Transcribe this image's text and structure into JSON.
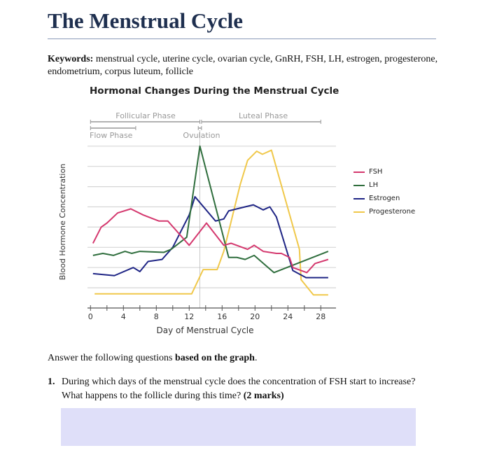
{
  "document": {
    "title": "The Menstrual Cycle",
    "keywords_label": "Keywords:",
    "keywords_text": " menstrual cycle, uterine cycle, ovarian cycle, GnRH, FSH, LH, estrogen, progesterone, endometrium, corpus luteum, follicle",
    "intro_prefix": "Answer the following questions ",
    "intro_bold": "based on the graph",
    "intro_suffix": ".",
    "question_number": "1.",
    "question_text": "During which days of the menstrual cycle does the concentration of FSH start to increase? What happens to the follicle during this time? ",
    "question_marks": "(2 marks)",
    "answer_box_color": "#dfdff9"
  },
  "chart_data": {
    "type": "line",
    "title": "Hormonal Changes During the Menstrual Cycle",
    "xlabel": "Day of Menstrual Cycle",
    "ylabel": "Blood Hormone Concentration",
    "xlim": [
      0,
      29
    ],
    "ylim": [
      0,
      8
    ],
    "x_ticks": [
      "0",
      "4",
      "8",
      "12",
      "16",
      "20",
      "24",
      "28"
    ],
    "grid": "horizontal",
    "legend_position": "right",
    "phases": {
      "follicular": {
        "label": "Follicular Phase",
        "range": [
          0,
          13.3
        ]
      },
      "luteal": {
        "label": "Luteal Phase",
        "range": [
          13.5,
          28
        ]
      },
      "flow": {
        "label": "Flow Phase",
        "range": [
          0,
          5.5
        ]
      },
      "ovulation": {
        "label": "Ovulation",
        "day": 13.3
      }
    },
    "series": [
      {
        "name": "FSH",
        "color": "#d4386e",
        "points": [
          [
            0.3,
            3.2
          ],
          [
            1.3,
            4.0
          ],
          [
            2.0,
            4.2
          ],
          [
            3.3,
            4.7
          ],
          [
            4.9,
            4.9
          ],
          [
            6.4,
            4.6
          ],
          [
            8.3,
            4.3
          ],
          [
            9.4,
            4.3
          ],
          [
            12,
            3.1
          ],
          [
            14.1,
            4.2
          ],
          [
            16.2,
            3.1
          ],
          [
            17.1,
            3.2
          ],
          [
            19.1,
            2.9
          ],
          [
            19.9,
            3.1
          ],
          [
            21,
            2.8
          ],
          [
            22.6,
            2.7
          ],
          [
            23.2,
            2.7
          ],
          [
            24.2,
            2.5
          ],
          [
            24.6,
            2.0
          ],
          [
            26.3,
            1.75
          ],
          [
            27.3,
            2.2
          ],
          [
            28.9,
            2.4
          ]
        ]
      },
      {
        "name": "LH",
        "color": "#2f6e3d",
        "points": [
          [
            0.3,
            2.6
          ],
          [
            1.5,
            2.7
          ],
          [
            2.8,
            2.6
          ],
          [
            4.2,
            2.8
          ],
          [
            5,
            2.7
          ],
          [
            6,
            2.8
          ],
          [
            8.9,
            2.75
          ],
          [
            9.8,
            2.9
          ],
          [
            11.7,
            3.5
          ],
          [
            13.3,
            8.0
          ],
          [
            16.8,
            2.5
          ],
          [
            17.8,
            2.5
          ],
          [
            18.8,
            2.4
          ],
          [
            19.9,
            2.6
          ],
          [
            22.3,
            1.75
          ],
          [
            28.9,
            2.8
          ]
        ]
      },
      {
        "name": "Estrogen",
        "color": "#1f2585",
        "points": [
          [
            0.3,
            1.7
          ],
          [
            2.9,
            1.6
          ],
          [
            5.2,
            2.0
          ],
          [
            6,
            1.8
          ],
          [
            7,
            2.3
          ],
          [
            8.7,
            2.4
          ],
          [
            10,
            3.0
          ],
          [
            12,
            4.6
          ],
          [
            12.7,
            5.5
          ],
          [
            15.2,
            4.3
          ],
          [
            16.2,
            4.4
          ],
          [
            16.8,
            4.8
          ],
          [
            19.8,
            5.1
          ],
          [
            21,
            4.85
          ],
          [
            21.8,
            5.0
          ],
          [
            22.6,
            4.5
          ],
          [
            24.6,
            1.85
          ],
          [
            26.2,
            1.5
          ],
          [
            27.9,
            1.5
          ],
          [
            28.9,
            1.5
          ]
        ]
      },
      {
        "name": "Progesterone",
        "color": "#f0c84a",
        "points": [
          [
            0.5,
            0.7
          ],
          [
            12.3,
            0.7
          ],
          [
            13.7,
            1.9
          ],
          [
            15.4,
            1.9
          ],
          [
            16.2,
            2.8
          ],
          [
            18.2,
            6.1
          ],
          [
            19.1,
            7.3
          ],
          [
            20.2,
            7.75
          ],
          [
            20.9,
            7.6
          ],
          [
            22,
            7.8
          ],
          [
            25.4,
            2.9
          ],
          [
            25.6,
            1.4
          ],
          [
            27.1,
            0.65
          ],
          [
            28.9,
            0.65
          ]
        ]
      }
    ]
  }
}
